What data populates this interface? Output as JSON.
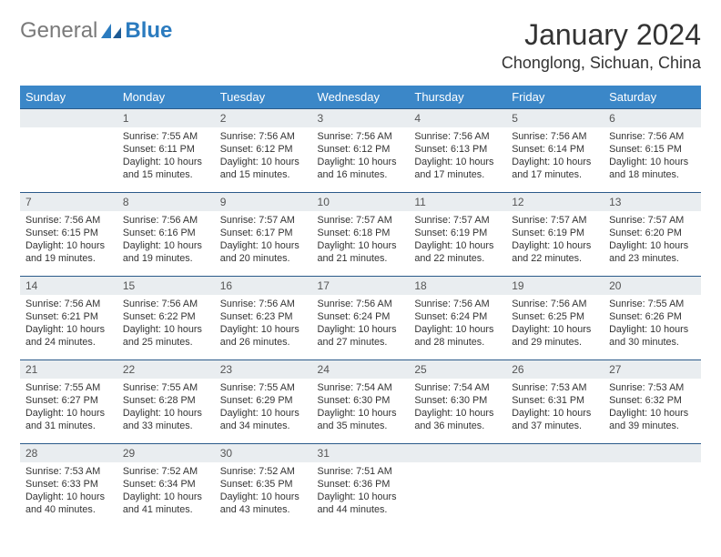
{
  "logo": {
    "general": "General",
    "blue": "Blue"
  },
  "title": "January 2024",
  "location": "Chonglong, Sichuan, China",
  "weekdays": [
    "Sunday",
    "Monday",
    "Tuesday",
    "Wednesday",
    "Thursday",
    "Friday",
    "Saturday"
  ],
  "colors": {
    "header_bg": "#3b87c8",
    "header_text": "#ffffff",
    "daynum_bg": "#e9edf0",
    "daynum_border": "#2b5a8a",
    "logo_gray": "#7a7a7a",
    "logo_blue": "#2b7bbf",
    "text": "#333333",
    "background": "#ffffff"
  },
  "fonts": {
    "title_size": 32,
    "location_size": 18,
    "weekday_size": 13,
    "daynum_size": 12,
    "content_size": 10.8
  },
  "start_offset": 1,
  "days": [
    {
      "n": "1",
      "sunrise": "7:55 AM",
      "sunset": "6:11 PM",
      "daylight": "10 hours and 15 minutes."
    },
    {
      "n": "2",
      "sunrise": "7:56 AM",
      "sunset": "6:12 PM",
      "daylight": "10 hours and 15 minutes."
    },
    {
      "n": "3",
      "sunrise": "7:56 AM",
      "sunset": "6:12 PM",
      "daylight": "10 hours and 16 minutes."
    },
    {
      "n": "4",
      "sunrise": "7:56 AM",
      "sunset": "6:13 PM",
      "daylight": "10 hours and 17 minutes."
    },
    {
      "n": "5",
      "sunrise": "7:56 AM",
      "sunset": "6:14 PM",
      "daylight": "10 hours and 17 minutes."
    },
    {
      "n": "6",
      "sunrise": "7:56 AM",
      "sunset": "6:15 PM",
      "daylight": "10 hours and 18 minutes."
    },
    {
      "n": "7",
      "sunrise": "7:56 AM",
      "sunset": "6:15 PM",
      "daylight": "10 hours and 19 minutes."
    },
    {
      "n": "8",
      "sunrise": "7:56 AM",
      "sunset": "6:16 PM",
      "daylight": "10 hours and 19 minutes."
    },
    {
      "n": "9",
      "sunrise": "7:57 AM",
      "sunset": "6:17 PM",
      "daylight": "10 hours and 20 minutes."
    },
    {
      "n": "10",
      "sunrise": "7:57 AM",
      "sunset": "6:18 PM",
      "daylight": "10 hours and 21 minutes."
    },
    {
      "n": "11",
      "sunrise": "7:57 AM",
      "sunset": "6:19 PM",
      "daylight": "10 hours and 22 minutes."
    },
    {
      "n": "12",
      "sunrise": "7:57 AM",
      "sunset": "6:19 PM",
      "daylight": "10 hours and 22 minutes."
    },
    {
      "n": "13",
      "sunrise": "7:57 AM",
      "sunset": "6:20 PM",
      "daylight": "10 hours and 23 minutes."
    },
    {
      "n": "14",
      "sunrise": "7:56 AM",
      "sunset": "6:21 PM",
      "daylight": "10 hours and 24 minutes."
    },
    {
      "n": "15",
      "sunrise": "7:56 AM",
      "sunset": "6:22 PM",
      "daylight": "10 hours and 25 minutes."
    },
    {
      "n": "16",
      "sunrise": "7:56 AM",
      "sunset": "6:23 PM",
      "daylight": "10 hours and 26 minutes."
    },
    {
      "n": "17",
      "sunrise": "7:56 AM",
      "sunset": "6:24 PM",
      "daylight": "10 hours and 27 minutes."
    },
    {
      "n": "18",
      "sunrise": "7:56 AM",
      "sunset": "6:24 PM",
      "daylight": "10 hours and 28 minutes."
    },
    {
      "n": "19",
      "sunrise": "7:56 AM",
      "sunset": "6:25 PM",
      "daylight": "10 hours and 29 minutes."
    },
    {
      "n": "20",
      "sunrise": "7:55 AM",
      "sunset": "6:26 PM",
      "daylight": "10 hours and 30 minutes."
    },
    {
      "n": "21",
      "sunrise": "7:55 AM",
      "sunset": "6:27 PM",
      "daylight": "10 hours and 31 minutes."
    },
    {
      "n": "22",
      "sunrise": "7:55 AM",
      "sunset": "6:28 PM",
      "daylight": "10 hours and 33 minutes."
    },
    {
      "n": "23",
      "sunrise": "7:55 AM",
      "sunset": "6:29 PM",
      "daylight": "10 hours and 34 minutes."
    },
    {
      "n": "24",
      "sunrise": "7:54 AM",
      "sunset": "6:30 PM",
      "daylight": "10 hours and 35 minutes."
    },
    {
      "n": "25",
      "sunrise": "7:54 AM",
      "sunset": "6:30 PM",
      "daylight": "10 hours and 36 minutes."
    },
    {
      "n": "26",
      "sunrise": "7:53 AM",
      "sunset": "6:31 PM",
      "daylight": "10 hours and 37 minutes."
    },
    {
      "n": "27",
      "sunrise": "7:53 AM",
      "sunset": "6:32 PM",
      "daylight": "10 hours and 39 minutes."
    },
    {
      "n": "28",
      "sunrise": "7:53 AM",
      "sunset": "6:33 PM",
      "daylight": "10 hours and 40 minutes."
    },
    {
      "n": "29",
      "sunrise": "7:52 AM",
      "sunset": "6:34 PM",
      "daylight": "10 hours and 41 minutes."
    },
    {
      "n": "30",
      "sunrise": "7:52 AM",
      "sunset": "6:35 PM",
      "daylight": "10 hours and 43 minutes."
    },
    {
      "n": "31",
      "sunrise": "7:51 AM",
      "sunset": "6:36 PM",
      "daylight": "10 hours and 44 minutes."
    }
  ],
  "labels": {
    "sunrise": "Sunrise:",
    "sunset": "Sunset:",
    "daylight": "Daylight:"
  }
}
